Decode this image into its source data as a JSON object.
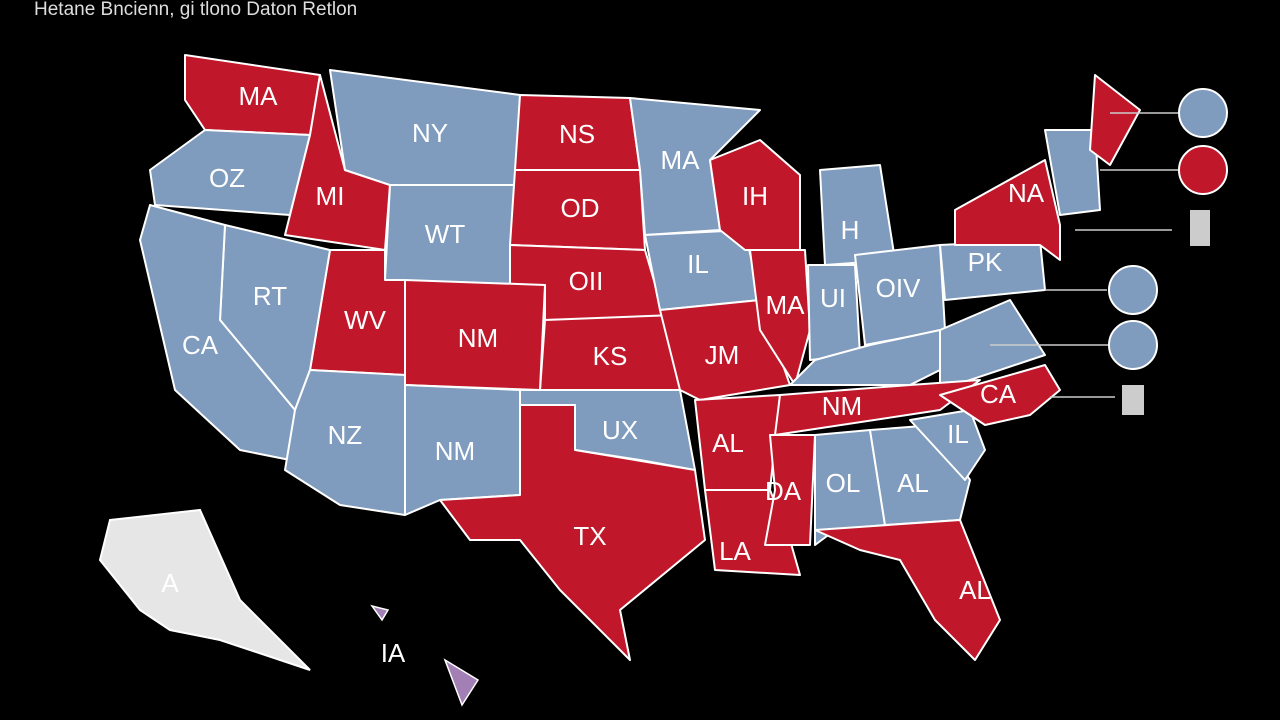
{
  "title": "Hetane Bncienn, gi tlono Daton Retlon",
  "states": [
    {
      "label": "MA"
    },
    {
      "label": "OZ"
    },
    {
      "label": "MI"
    },
    {
      "label": "NY"
    },
    {
      "label": "WT"
    },
    {
      "label": "NS"
    },
    {
      "label": "OD"
    },
    {
      "label": "OII"
    },
    {
      "label": "KS"
    },
    {
      "label": "NM"
    },
    {
      "label": "WV"
    },
    {
      "label": "RT"
    },
    {
      "label": "CA"
    },
    {
      "label": "NZ"
    },
    {
      "label": "NM"
    },
    {
      "label": "UX"
    },
    {
      "label": "TX"
    },
    {
      "label": "MA"
    },
    {
      "label": "IL"
    },
    {
      "label": "JM"
    },
    {
      "label": "AL"
    },
    {
      "label": "LA"
    },
    {
      "label": "IH"
    },
    {
      "label": "MA"
    },
    {
      "label": "H"
    },
    {
      "label": "UI"
    },
    {
      "label": "OIV"
    },
    {
      "label": "NM"
    },
    {
      "label": "DA"
    },
    {
      "label": "OL"
    },
    {
      "label": "AL"
    },
    {
      "label": "AL"
    },
    {
      "label": "IL"
    },
    {
      "label": "CA"
    },
    {
      "label": "PK"
    },
    {
      "label": "NA"
    },
    {
      "label": "A"
    },
    {
      "label": "IA"
    }
  ]
}
